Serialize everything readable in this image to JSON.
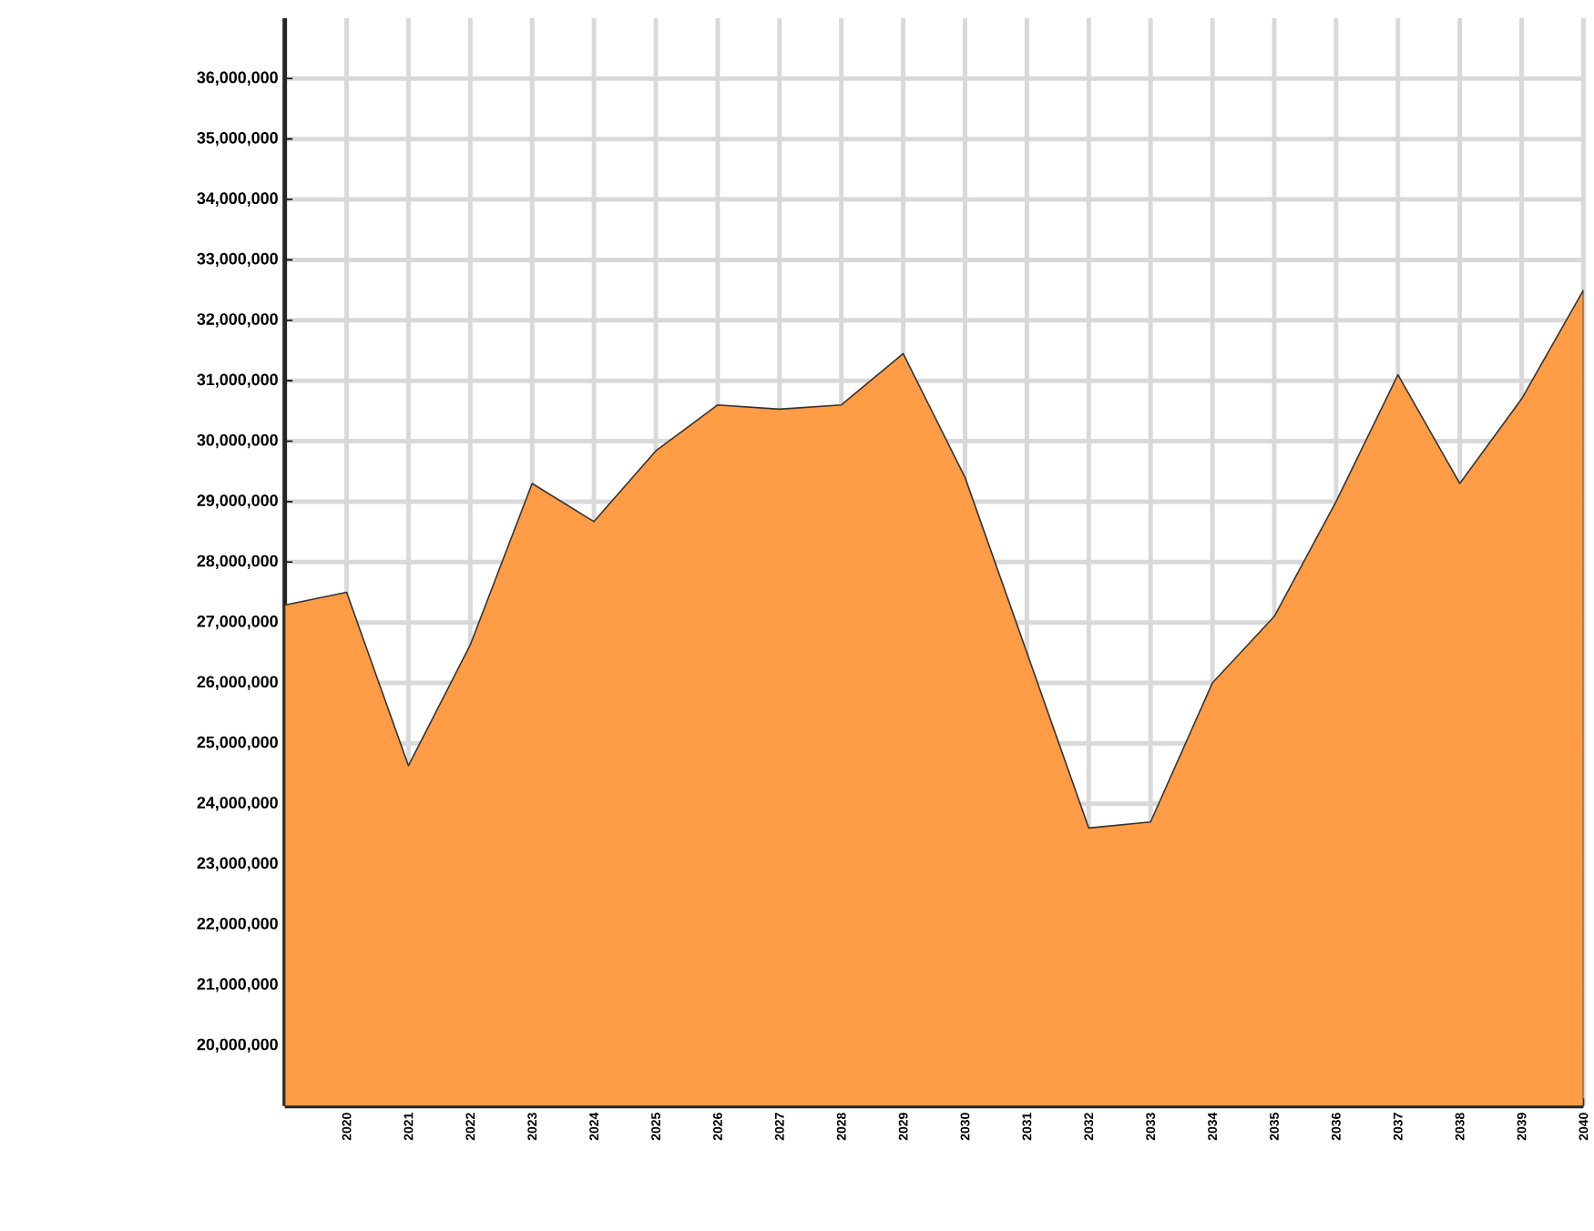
{
  "chart_data": {
    "type": "area",
    "categories": [
      null,
      "2020",
      "2021",
      "2022",
      "2023",
      "2024",
      "2025",
      "2026",
      "2027",
      "2028",
      "2029",
      "2030",
      "2031",
      "2032",
      "2033",
      "2034",
      "2035",
      "2036",
      "2037",
      "2038",
      "2039",
      "2040"
    ],
    "values": [
      27290000,
      27500000,
      24630000,
      26630000,
      29300000,
      28670000,
      29840000,
      30600000,
      30530000,
      30600000,
      31450000,
      29400000,
      26500000,
      23600000,
      23700000,
      26000000,
      27100000,
      29000000,
      31100000,
      29300000,
      30700000,
      32500000
    ],
    "color": "#ff9c45",
    "ylim": [
      19000000,
      37000000
    ],
    "yticks": [
      {
        "value": 20000000,
        "label": "20,000,000"
      },
      {
        "value": 21000000,
        "label": "21,000,000"
      },
      {
        "value": 22000000,
        "label": "22,000,000"
      },
      {
        "value": 23000000,
        "label": "23,000,000"
      },
      {
        "value": 24000000,
        "label": "24,000,000"
      },
      {
        "value": 25000000,
        "label": "25,000,000"
      },
      {
        "value": 26000000,
        "label": "26,000,000"
      },
      {
        "value": 27000000,
        "label": "27,000,000"
      },
      {
        "value": 28000000,
        "label": "28,000,000"
      },
      {
        "value": 29000000,
        "label": "29,000,000"
      },
      {
        "value": 30000000,
        "label": "30,000,000"
      },
      {
        "value": 31000000,
        "label": "31,000,000"
      },
      {
        "value": 32000000,
        "label": "32,000,000"
      },
      {
        "value": 33000000,
        "label": "33,000,000"
      },
      {
        "value": 34000000,
        "label": "34,000,000"
      },
      {
        "value": 35000000,
        "label": "35,000,000"
      },
      {
        "value": 36000000,
        "label": "36,000,000"
      }
    ],
    "grid": true
  }
}
